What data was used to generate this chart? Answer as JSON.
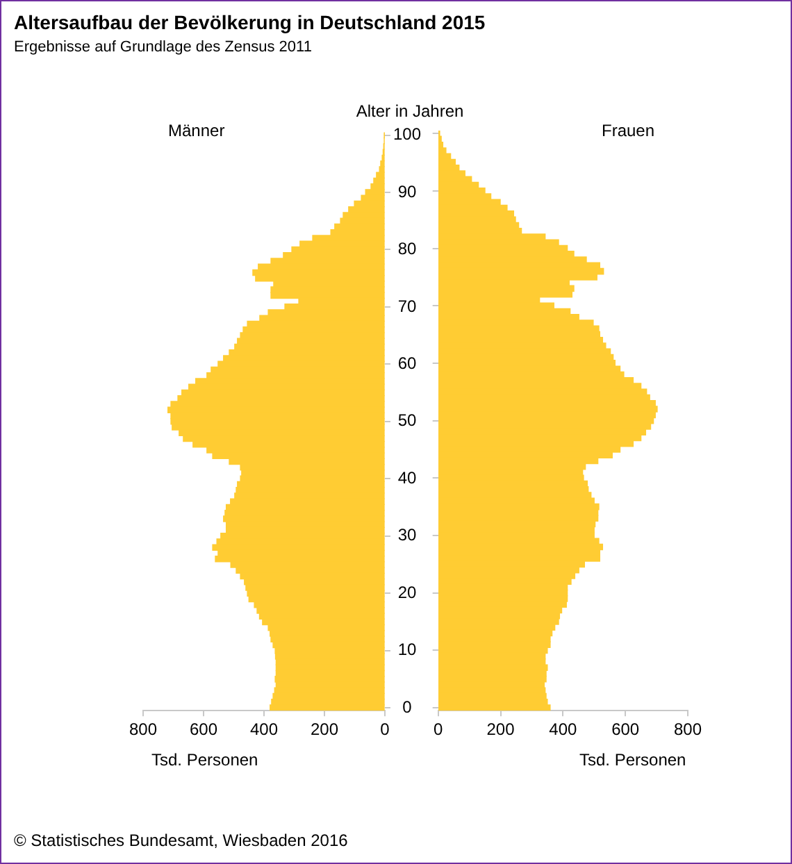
{
  "chart_data": [
    {
      "type": "bar",
      "orientation": "horizontal",
      "title": "Altersaufbau der Bevölkerung in Deutschland 2015",
      "subtitle": "Ergebnisse auf Grundlage des Zensus 2011",
      "annotations": [
        "© Statistisches Bundesamt, Wiesbaden 2016"
      ],
      "ylabel": "Alter in Jahren",
      "xlabel": "Tsd. Personen",
      "xlim": [
        800,
        0
      ],
      "xticks": [
        800,
        600,
        400,
        200,
        0
      ],
      "categories": [
        "100",
        null,
        null,
        null,
        null,
        null,
        null,
        null,
        null,
        null,
        "90",
        null,
        null,
        null,
        null,
        null,
        null,
        null,
        null,
        null,
        "80",
        null,
        null,
        null,
        null,
        null,
        null,
        null,
        null,
        null,
        "70",
        null,
        null,
        null,
        null,
        null,
        null,
        null,
        null,
        null,
        "60",
        null,
        null,
        null,
        null,
        null,
        null,
        null,
        null,
        null,
        "50",
        null,
        null,
        null,
        null,
        null,
        null,
        null,
        null,
        null,
        "40",
        null,
        null,
        null,
        null,
        null,
        null,
        null,
        null,
        null,
        "30",
        null,
        null,
        null,
        null,
        null,
        null,
        null,
        null,
        null,
        "20",
        null,
        null,
        null,
        null,
        null,
        null,
        null,
        null,
        null,
        "10",
        null,
        null,
        null,
        null,
        null,
        null,
        null,
        null,
        null,
        "0"
      ],
      "series": [
        {
          "name": "Männer",
          "color": "#ffcc33",
          "values": [
            1,
            2,
            4,
            6,
            9,
            14,
            18,
            28,
            37,
            46,
            64,
            78,
            101,
            120,
            138,
            147,
            166,
            179,
            239,
            281,
            308,
            336,
            377,
            419,
            437,
            428,
            368,
            377,
            377,
            285,
            331,
            386,
            414,
            455,
            469,
            478,
            488,
            497,
            515,
            534,
            552,
            575,
            589,
            626,
            649,
            672,
            685,
            708,
            718,
            708,
            708,
            704,
            681,
            667,
            635,
            589,
            570,
            515,
            478,
            474,
            478,
            488,
            492,
            497,
            511,
            525,
            529,
            534,
            525,
            525,
            543,
            556,
            570,
            552,
            561,
            510,
            492,
            478,
            465,
            460,
            455,
            450,
            432,
            423,
            415,
            405,
            386,
            380,
            377,
            370,
            363,
            362,
            360,
            360,
            360,
            363,
            360,
            365,
            370,
            375,
            380
          ]
        }
      ]
    },
    {
      "type": "bar",
      "orientation": "horizontal",
      "xlabel": "Tsd. Personen",
      "xlim": [
        0,
        800
      ],
      "xticks": [
        0,
        200,
        400,
        600,
        800
      ],
      "tick_labels": "x",
      "categories": [
        "100",
        null,
        null,
        null,
        null,
        null,
        null,
        null,
        null,
        null,
        "90",
        null,
        null,
        null,
        null,
        null,
        null,
        null,
        null,
        null,
        "80",
        null,
        null,
        null,
        null,
        null,
        null,
        null,
        null,
        null,
        "70",
        null,
        null,
        null,
        null,
        null,
        null,
        null,
        null,
        null,
        "60",
        null,
        null,
        null,
        null,
        null,
        null,
        null,
        null,
        null,
        "50",
        null,
        null,
        null,
        null,
        null,
        null,
        null,
        null,
        null,
        "40",
        null,
        null,
        null,
        null,
        null,
        null,
        null,
        null,
        null,
        "30",
        null,
        null,
        null,
        null,
        null,
        null,
        null,
        null,
        null,
        "20",
        null,
        null,
        null,
        null,
        null,
        null,
        null,
        null,
        null,
        "10",
        null,
        null,
        null,
        null,
        null,
        null,
        null,
        null,
        null,
        "0"
      ],
      "series": [
        {
          "name": "Frauen",
          "color": "#ffcc33",
          "values": [
            5,
            10,
            15,
            25,
            40,
            55,
            67,
            86,
            107,
            129,
            150,
            169,
            199,
            221,
            242,
            248,
            258,
            267,
            343,
            386,
            414,
            435,
            475,
            518,
            530,
            509,
            420,
            435,
            429,
            325,
            371,
            423,
            451,
            497,
            515,
            518,
            527,
            537,
            552,
            561,
            567,
            583,
            595,
            625,
            650,
            668,
            678,
            696,
            702,
            696,
            690,
            681,
            665,
            650,
            625,
            583,
            558,
            512,
            472,
            463,
            466,
            478,
            481,
            490,
            500,
            515,
            512,
            512,
            503,
            500,
            500,
            515,
            527,
            518,
            518,
            469,
            451,
            438,
            426,
            414,
            414,
            414,
            411,
            396,
            389,
            386,
            374,
            365,
            359,
            359,
            350,
            343,
            343,
            350,
            346,
            346,
            340,
            343,
            346,
            350,
            359
          ]
        }
      ]
    }
  ]
}
